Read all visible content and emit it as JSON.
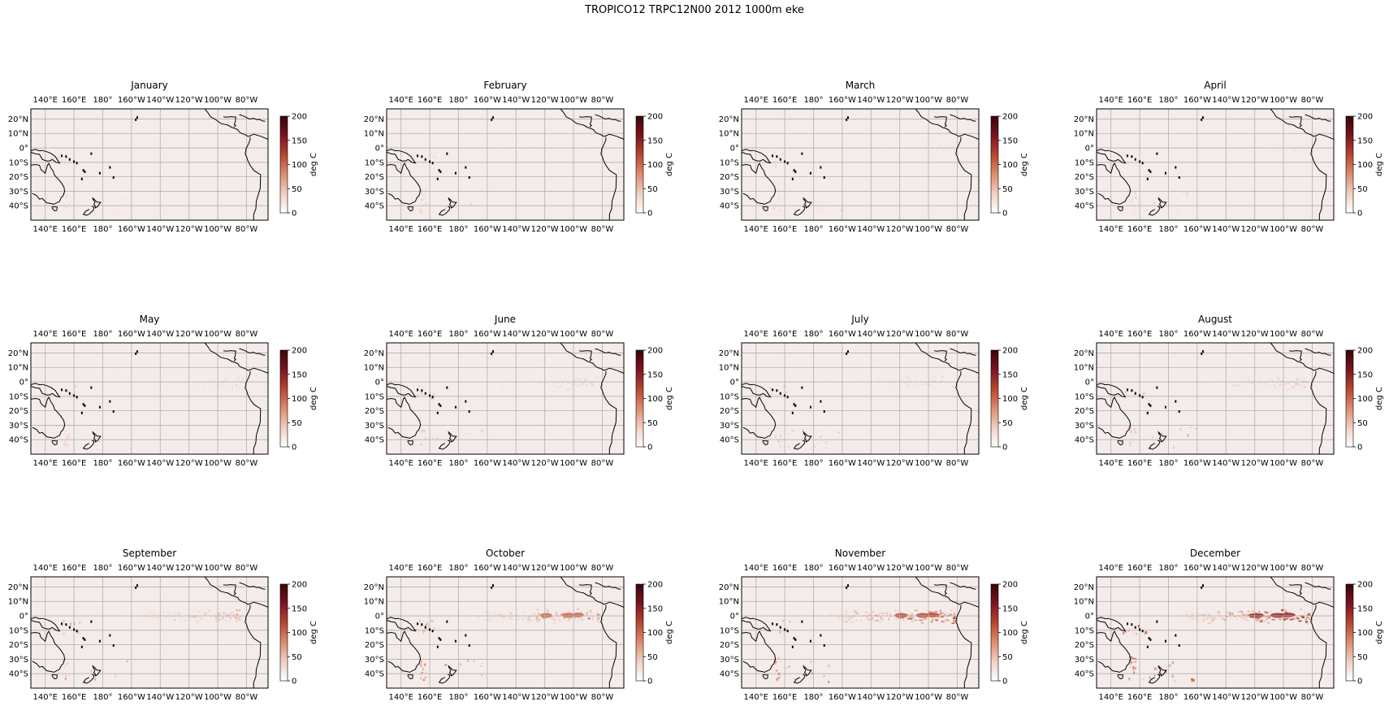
{
  "figure": {
    "title": "TROPICO12 TRPC12N00 2012 1000m eke"
  },
  "colors": {
    "background": "#ffffff",
    "ocean_base": "#f4ecea",
    "grid": "#b0b0b0",
    "coast": "#000000",
    "cmap": [
      "#ffffff",
      "#f0cfc3",
      "#dc8d6e",
      "#b8452f",
      "#7a1420",
      "#3a0408"
    ]
  },
  "chart_data": {
    "type": "heatmap",
    "projection": "PlateCarree central_longitude 180",
    "extent": {
      "lon": [
        130,
        295
      ],
      "lat": [
        -50,
        27
      ]
    },
    "lon_ticks": [
      140,
      160,
      180,
      200,
      220,
      240,
      260,
      280
    ],
    "lon_tick_labels": [
      "140°E",
      "160°E",
      "180°",
      "160°W",
      "140°W",
      "120°W",
      "100°W",
      "80°W"
    ],
    "lat_ticks": [
      20,
      10,
      0,
      -10,
      -20,
      -30,
      -40
    ],
    "lat_tick_labels": [
      "20°N",
      "10°N",
      "0°",
      "10°S",
      "20°S",
      "30°S",
      "40°S"
    ],
    "colorbar": {
      "label": "deg C",
      "range": [
        0,
        200
      ],
      "ticks": [
        0,
        50,
        100,
        150,
        200
      ],
      "tick_labels": [
        "0",
        "50",
        "100",
        "150",
        "200"
      ]
    },
    "panels": [
      {
        "title": "January",
        "intensity": 0.1
      },
      {
        "title": "February",
        "intensity": 0.14
      },
      {
        "title": "March",
        "intensity": 0.16
      },
      {
        "title": "April",
        "intensity": 0.18
      },
      {
        "title": "May",
        "intensity": 0.22
      },
      {
        "title": "June",
        "intensity": 0.25
      },
      {
        "title": "July",
        "intensity": 0.26
      },
      {
        "title": "August",
        "intensity": 0.3
      },
      {
        "title": "September",
        "intensity": 0.38
      },
      {
        "title": "October",
        "intensity": 0.55
      },
      {
        "title": "November",
        "intensity": 0.65
      },
      {
        "title": "December",
        "intensity": 0.78
      }
    ]
  }
}
